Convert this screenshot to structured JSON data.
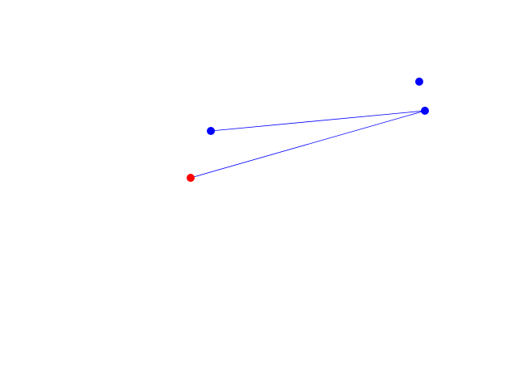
{
  "nodes": [
    {
      "color": "#0000ff"
    },
    {
      "color": "#0000ff"
    },
    {
      "color": "#0000ff"
    },
    {
      "color": "#ff0000"
    }
  ],
  "edges": [
    {
      "color": "#0000ff"
    },
    {
      "color": "#0000ff"
    }
  ]
}
